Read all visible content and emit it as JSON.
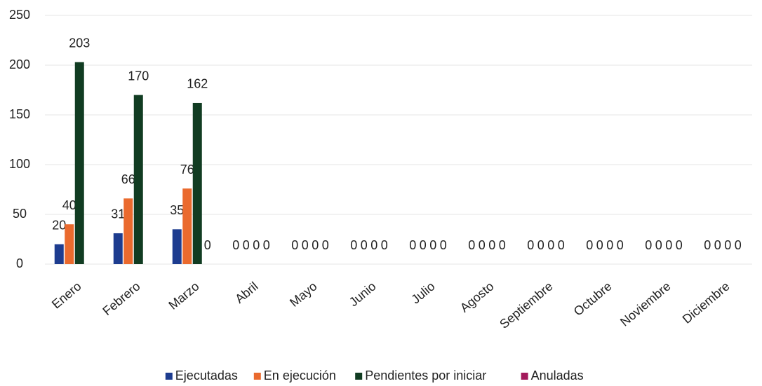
{
  "chart_data": {
    "type": "bar",
    "categories": [
      "Enero",
      "Febrero",
      "Marzo",
      "Abril",
      "Mayo",
      "Junio",
      "Julio",
      "Agosto",
      "Septiembre",
      "Octubre",
      "Noviembre",
      "Diciembre"
    ],
    "series": [
      {
        "name": "Ejecutadas",
        "color": "#1d3c8f",
        "values": [
          20,
          31,
          35,
          0,
          0,
          0,
          0,
          0,
          0,
          0,
          0,
          0
        ]
      },
      {
        "name": "En ejecución",
        "color": "#ea6a2e",
        "values": [
          40,
          66,
          76,
          0,
          0,
          0,
          0,
          0,
          0,
          0,
          0,
          0
        ]
      },
      {
        "name": "Pendientes por iniciar",
        "color": "#113c22",
        "values": [
          203,
          170,
          162,
          0,
          0,
          0,
          0,
          0,
          0,
          0,
          0,
          0
        ]
      },
      {
        "name": "Anuladas",
        "color": "#a3195b",
        "values": [
          0,
          0,
          0,
          0,
          0,
          0,
          0,
          0,
          0,
          0,
          0,
          0
        ],
        "value_labels": [
          null,
          null,
          "0",
          "0",
          "0",
          "0",
          "0",
          "0",
          "0",
          "0",
          "0",
          "0"
        ]
      }
    ],
    "ylim": [
      0,
      250
    ],
    "yticks": [
      0,
      50,
      100,
      150,
      200,
      250
    ],
    "grid": true,
    "legend": "bottom"
  }
}
